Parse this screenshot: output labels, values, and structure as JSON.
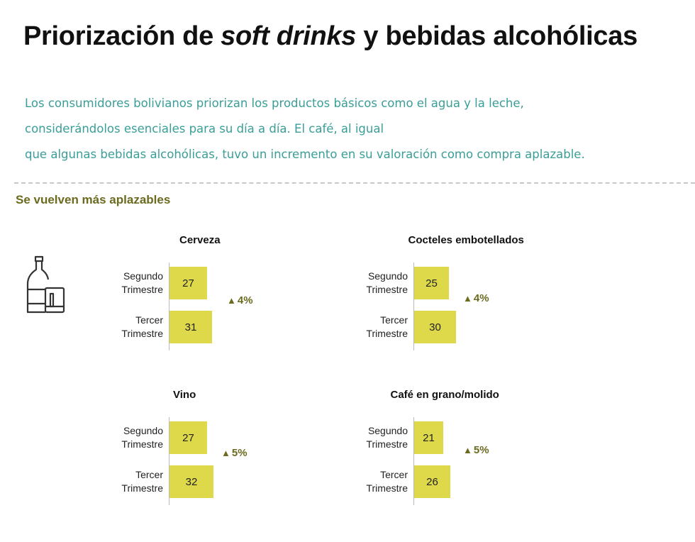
{
  "header": {
    "title_pre": "Priorización de ",
    "title_em": "soft drinks",
    "title_post": " y bebidas alcohólicas",
    "intro": [
      "Los consumidores bolivianos priorizan los productos básicos como el agua y la leche,",
      "considerándolos esenciales para su día a día. El café, al igual",
      "que algunas bebidas alcohólicas, tuvo un incremento en su valoración como compra aplazable."
    ]
  },
  "section_title": "Se vuelven más aplazables",
  "icons": {
    "drinks": "bottle-and-glass-icon",
    "delta": "triangle-up-icon"
  },
  "colors": {
    "bar": "#ddd94b",
    "accent_text": "#3a9e98",
    "delta": "#6b6a1f"
  },
  "chart_data": [
    {
      "type": "bar",
      "orientation": "horizontal",
      "title": "Cerveza",
      "categories": [
        "Segundo Trimestre",
        "Tercer Trimestre"
      ],
      "values": [
        27,
        31
      ],
      "change": "4%",
      "xlim": [
        0,
        100
      ]
    },
    {
      "type": "bar",
      "orientation": "horizontal",
      "title": "Cocteles embotellados",
      "categories": [
        "Segundo Trimestre",
        "Tercer Trimestre"
      ],
      "values": [
        25,
        30
      ],
      "change": "4%",
      "xlim": [
        0,
        100
      ]
    },
    {
      "type": "bar",
      "orientation": "horizontal",
      "title": "Vino",
      "categories": [
        "Segundo Trimestre",
        "Tercer Trimestre"
      ],
      "values": [
        27,
        32
      ],
      "change": "5%",
      "xlim": [
        0,
        100
      ]
    },
    {
      "type": "bar",
      "orientation": "horizontal",
      "title": "Café en grano/molido",
      "categories": [
        "Segundo Trimestre",
        "Tercer Trimestre"
      ],
      "values": [
        21,
        26
      ],
      "change": "5%",
      "xlim": [
        0,
        100
      ]
    }
  ],
  "labels": {
    "q2": [
      "Segundo",
      "Trimestre"
    ],
    "q3": [
      "Tercer",
      "Trimestre"
    ]
  }
}
